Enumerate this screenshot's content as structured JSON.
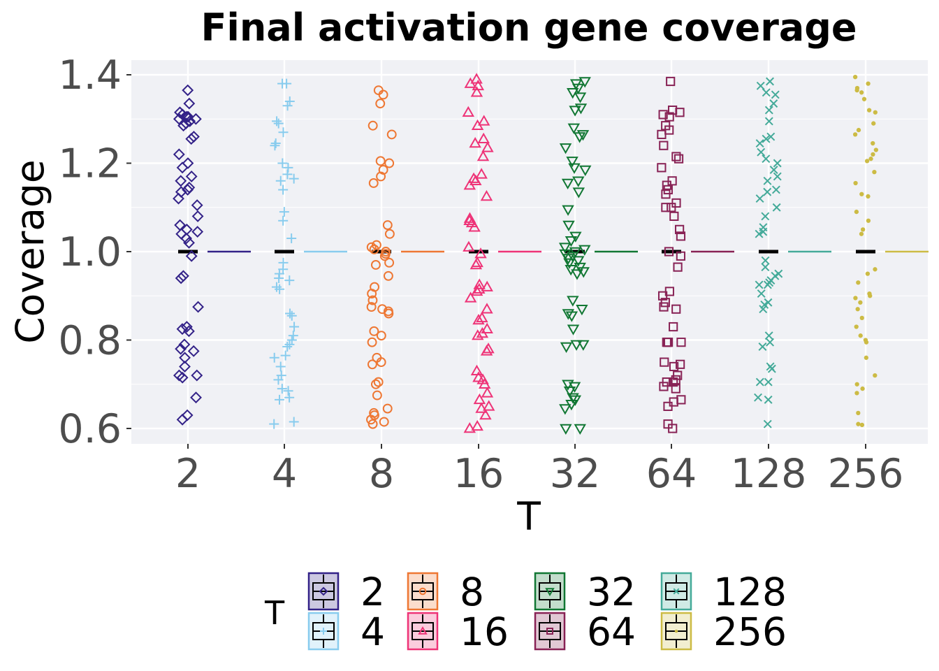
{
  "chart_data": {
    "type": "scatter",
    "title": "Final activation gene coverage",
    "xlabel": "T",
    "ylabel": "Coverage",
    "categories": [
      "2",
      "4",
      "8",
      "16",
      "32",
      "64",
      "128",
      "256"
    ],
    "yticks": [
      "0.6",
      "0.8",
      "1.0",
      "1.2",
      "1.4"
    ],
    "ytick_values": [
      0.6,
      0.8,
      1.0,
      1.2,
      1.4
    ],
    "ylim": [
      0.565,
      1.44
    ],
    "median": 1.0,
    "grid": true,
    "legend": {
      "title": "T",
      "position": "bottom"
    },
    "series": [
      {
        "name": "2",
        "color": "#332288",
        "shape": "diamond",
        "values": [
          1.365,
          1.335,
          1.315,
          1.31,
          1.305,
          1.305,
          1.3,
          1.3,
          1.295,
          1.29,
          1.285,
          1.26,
          1.255,
          1.22,
          1.2,
          1.19,
          1.17,
          1.16,
          1.145,
          1.14,
          1.135,
          1.12,
          1.105,
          1.08,
          1.06,
          1.05,
          1.045,
          1.04,
          1.03,
          1.02,
          0.99,
          0.945,
          0.94,
          0.875,
          0.83,
          0.825,
          0.82,
          0.79,
          0.78,
          0.775,
          0.76,
          0.74,
          0.72,
          0.72,
          0.715,
          0.67,
          0.63,
          0.62
        ]
      },
      {
        "name": "4",
        "color": "#88CCEE",
        "shape": "plus",
        "values": [
          1.38,
          1.38,
          1.34,
          1.33,
          1.295,
          1.29,
          1.27,
          1.245,
          1.24,
          1.2,
          1.19,
          1.175,
          1.165,
          1.16,
          1.14,
          1.09,
          1.07,
          1.03,
          0.975,
          0.96,
          0.95,
          0.94,
          0.935,
          0.92,
          0.915,
          0.86,
          0.855,
          0.83,
          0.81,
          0.8,
          0.79,
          0.785,
          0.765,
          0.76,
          0.74,
          0.72,
          0.71,
          0.69,
          0.685,
          0.67,
          0.665,
          0.615,
          0.61
        ]
      },
      {
        "name": "8",
        "color": "#EE7733",
        "shape": "circle",
        "values": [
          1.365,
          1.355,
          1.335,
          1.285,
          1.265,
          1.205,
          1.2,
          1.185,
          1.17,
          1.155,
          1.06,
          1.04,
          1.015,
          1.01,
          1.005,
          1.0,
          0.995,
          0.99,
          0.975,
          0.97,
          0.945,
          0.92,
          0.905,
          0.89,
          0.875,
          0.87,
          0.865,
          0.86,
          0.82,
          0.81,
          0.795,
          0.76,
          0.75,
          0.745,
          0.705,
          0.7,
          0.675,
          0.645,
          0.635,
          0.63,
          0.62,
          0.615,
          0.61
        ]
      },
      {
        "name": "16",
        "color": "#EE3377",
        "shape": "triangle-up",
        "values": [
          1.39,
          1.38,
          1.375,
          1.36,
          1.315,
          1.295,
          1.285,
          1.255,
          1.245,
          1.235,
          1.215,
          1.175,
          1.165,
          1.16,
          1.15,
          1.125,
          1.075,
          1.07,
          1.065,
          1.055,
          1.01,
          0.995,
          0.975,
          0.97,
          0.925,
          0.92,
          0.915,
          0.91,
          0.895,
          0.87,
          0.85,
          0.845,
          0.825,
          0.815,
          0.81,
          0.78,
          0.775,
          0.73,
          0.715,
          0.71,
          0.7,
          0.68,
          0.665,
          0.65,
          0.645,
          0.63,
          0.605,
          0.6
        ]
      },
      {
        "name": "32",
        "color": "#117733",
        "shape": "triangle-down",
        "values": [
          1.385,
          1.38,
          1.37,
          1.36,
          1.35,
          1.325,
          1.32,
          1.28,
          1.265,
          1.26,
          1.235,
          1.205,
          1.19,
          1.185,
          1.16,
          1.155,
          1.135,
          1.095,
          1.06,
          1.035,
          1.025,
          1.01,
          1.005,
          1.0,
          0.995,
          0.99,
          0.985,
          0.98,
          0.975,
          0.965,
          0.96,
          0.955,
          0.95,
          0.89,
          0.87,
          0.86,
          0.855,
          0.825,
          0.79,
          0.79,
          0.785,
          0.7,
          0.695,
          0.685,
          0.67,
          0.665,
          0.655,
          0.645,
          0.6,
          0.6
        ]
      },
      {
        "name": "64",
        "color": "#882255",
        "shape": "square",
        "values": [
          1.385,
          1.32,
          1.315,
          1.31,
          1.305,
          1.285,
          1.275,
          1.265,
          1.24,
          1.215,
          1.21,
          1.19,
          1.16,
          1.15,
          1.14,
          1.13,
          1.11,
          1.1,
          1.1,
          1.08,
          1.05,
          1.035,
          1.0,
          0.99,
          0.965,
          0.91,
          0.9,
          0.885,
          0.875,
          0.87,
          0.83,
          0.795,
          0.795,
          0.795,
          0.795,
          0.75,
          0.745,
          0.74,
          0.72,
          0.71,
          0.705,
          0.705,
          0.695,
          0.69,
          0.665,
          0.66,
          0.65,
          0.61,
          0.6
        ]
      },
      {
        "name": "128",
        "color": "#44AA99",
        "shape": "cross",
        "values": [
          1.385,
          1.375,
          1.36,
          1.355,
          1.335,
          1.32,
          1.295,
          1.26,
          1.255,
          1.245,
          1.225,
          1.21,
          1.2,
          1.185,
          1.17,
          1.16,
          1.14,
          1.135,
          1.12,
          1.1,
          1.08,
          1.055,
          1.045,
          1.04,
          0.98,
          0.965,
          0.95,
          0.945,
          0.935,
          0.93,
          0.925,
          0.925,
          0.905,
          0.885,
          0.88,
          0.87,
          0.81,
          0.795,
          0.785,
          0.74,
          0.735,
          0.705,
          0.705,
          0.67,
          0.665,
          0.61
        ]
      },
      {
        "name": "256",
        "color": "#CCBB44",
        "shape": "dot",
        "values": [
          1.395,
          1.38,
          1.37,
          1.365,
          1.36,
          1.345,
          1.32,
          1.315,
          1.29,
          1.275,
          1.265,
          1.245,
          1.23,
          1.22,
          1.21,
          1.205,
          1.18,
          1.155,
          1.13,
          1.125,
          1.09,
          1.07,
          1.05,
          1.04,
          0.96,
          0.95,
          0.93,
          0.905,
          0.9,
          0.895,
          0.885,
          0.87,
          0.85,
          0.83,
          0.81,
          0.8,
          0.795,
          0.76,
          0.72,
          0.7,
          0.69,
          0.68,
          0.635,
          0.61,
          0.608
        ]
      }
    ]
  }
}
